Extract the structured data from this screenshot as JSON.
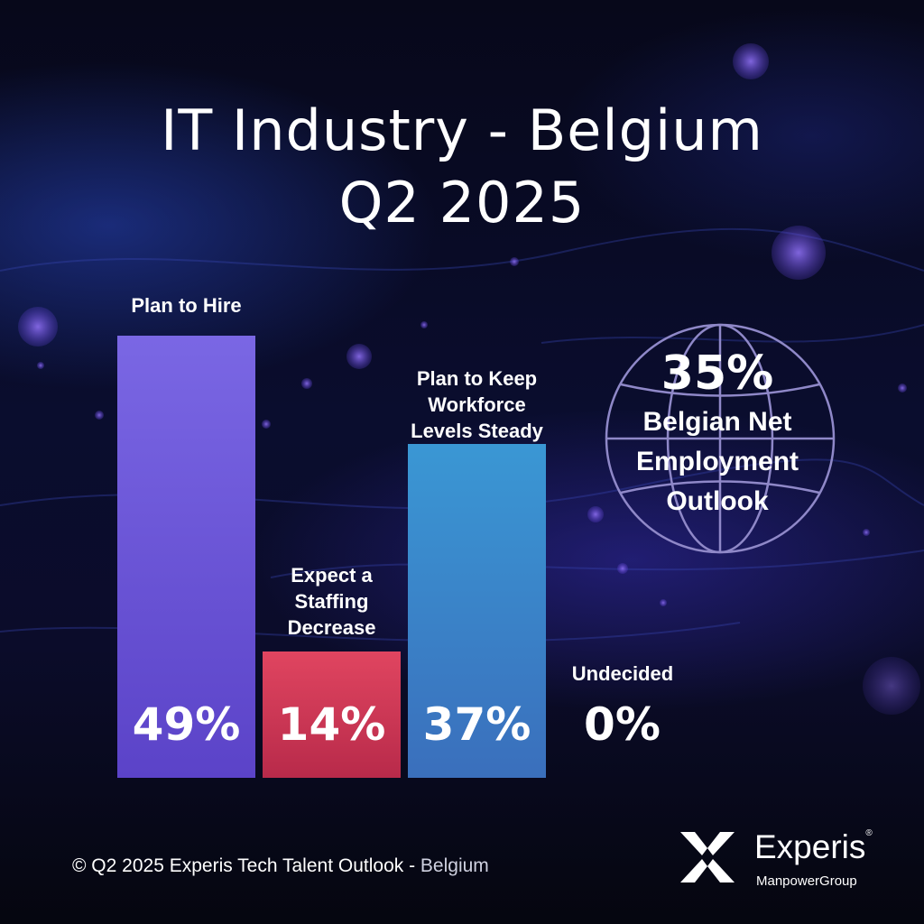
{
  "title_line1": "IT Industry - Belgium",
  "title_line2": "Q2 2025",
  "chart_data": {
    "type": "bar",
    "categories": [
      "Plan to Hire",
      "Expect a Staffing Decrease",
      "Plan to Keep Workforce Levels Steady",
      "Undecided"
    ],
    "values": [
      49,
      14,
      37,
      0
    ],
    "value_labels": [
      "49%",
      "14%",
      "37%",
      "0%"
    ],
    "ylim": [
      0,
      50
    ],
    "colors": [
      "#6a55d8",
      "#d63a56",
      "#3d86c6",
      "#888888"
    ]
  },
  "labels": {
    "hire": "Plan to Hire",
    "decrease_1": "Expect a",
    "decrease_2": "Staffing",
    "decrease_3": "Decrease",
    "steady_1": "Plan to Keep",
    "steady_2": "Workforce",
    "steady_3": "Levels Steady",
    "undecided": "Undecided"
  },
  "kpi": {
    "value": "35%",
    "label_1": "Belgian Net",
    "label_2": "Employment",
    "label_3": "Outlook"
  },
  "footer": {
    "text": "© Q2 2025  Experis Tech Talent Outlook",
    "sep": " - ",
    "region": "Belgium"
  },
  "logo": {
    "name": "Experis",
    "reg": "®",
    "sub": "ManpowerGroup"
  },
  "icons": {
    "globe": "globe-icon",
    "logo": "experis-x-icon"
  }
}
